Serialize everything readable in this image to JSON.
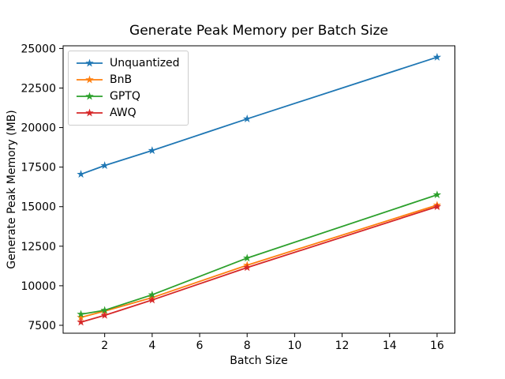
{
  "chart_data": {
    "type": "line",
    "title": "Generate Peak Memory per Batch Size",
    "xlabel": "Batch Size",
    "ylabel": "Generate Peak Memory (MB)",
    "x": [
      1,
      2,
      4,
      8,
      16
    ],
    "series": [
      {
        "name": "Unquantized",
        "color": "#1f77b4",
        "values": [
          17050,
          17600,
          18550,
          20550,
          24450
        ]
      },
      {
        "name": "BnB",
        "color": "#ff7f0e",
        "values": [
          8000,
          8400,
          9250,
          11300,
          15100
        ]
      },
      {
        "name": "GPTQ",
        "color": "#2ca02c",
        "values": [
          8200,
          8450,
          9430,
          11750,
          15750
        ]
      },
      {
        "name": "AWQ",
        "color": "#d62728",
        "values": [
          7700,
          8130,
          9100,
          11150,
          15000
        ]
      }
    ],
    "xticks": [
      2,
      4,
      6,
      8,
      10,
      12,
      14,
      16
    ],
    "yticks": [
      7500,
      10000,
      12500,
      15000,
      17500,
      20000,
      22500,
      25000
    ],
    "xlim": [
      0.25,
      16.75
    ],
    "ylim": [
      7000,
      25170
    ],
    "grid": false,
    "marker": "star",
    "legend_position": "upper-left",
    "axis_color": "#000000",
    "background": "#ffffff"
  }
}
